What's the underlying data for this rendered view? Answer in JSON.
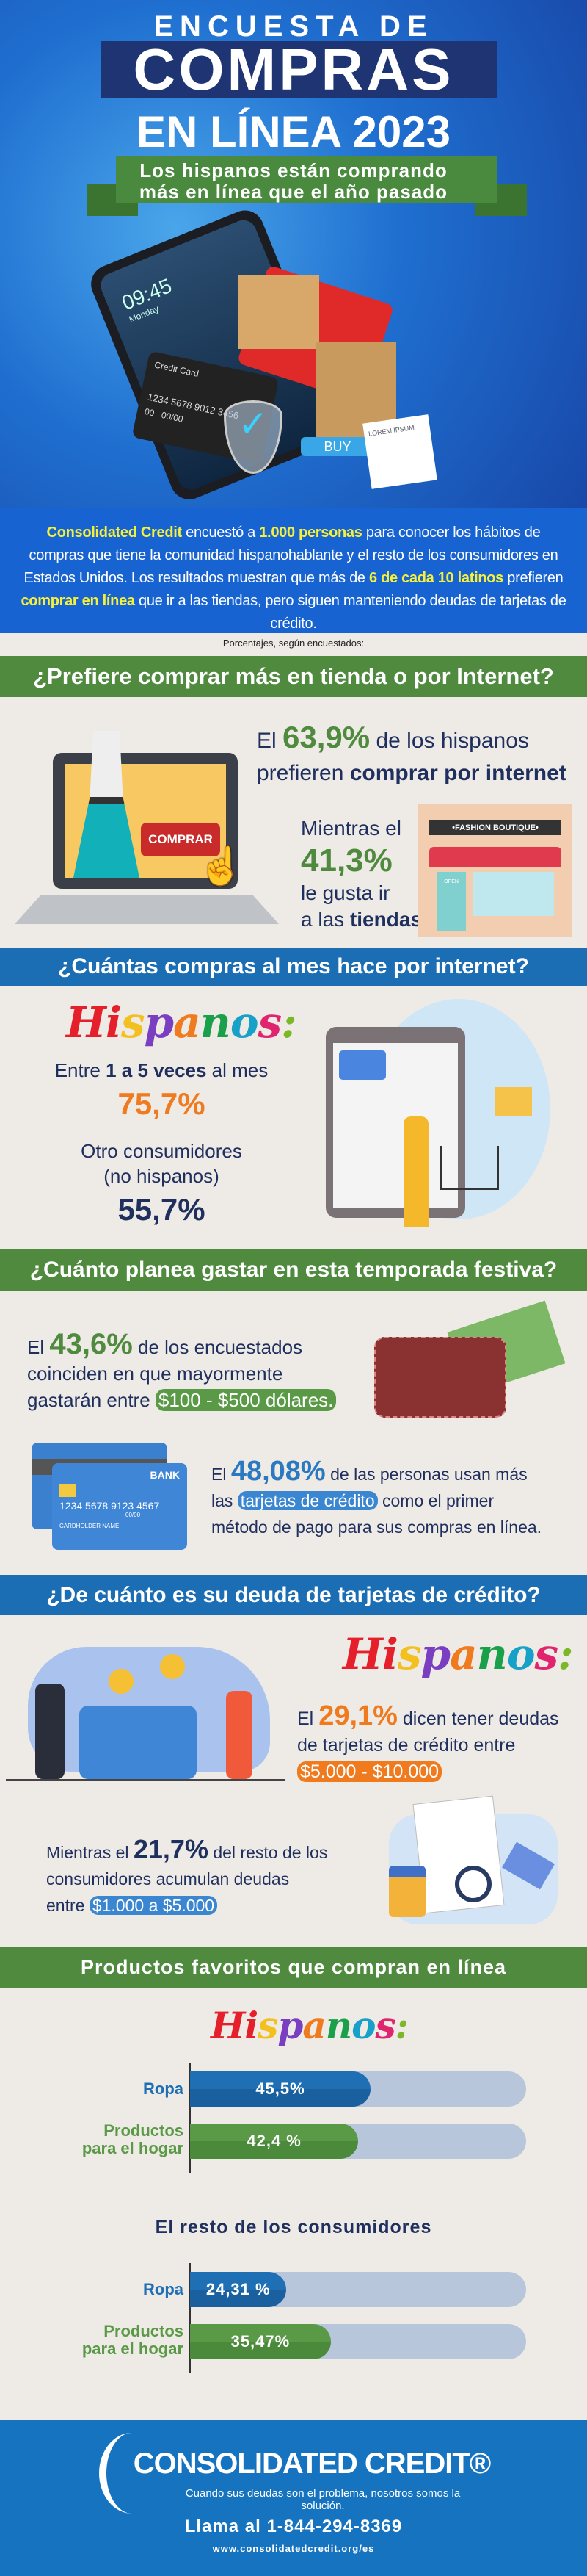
{
  "hero": {
    "line1": "ENCUESTA DE",
    "line2": "COMPRAS",
    "line3": "EN LÍNEA 2023",
    "ribbon1": "Los hispanos están comprando",
    "ribbon2": "más en línea que el año pasado",
    "illustration": {
      "phone_time": "09:45",
      "phone_day": "Monday",
      "card_label": "Credit Card",
      "card_number": "1234 5678 9012 3456",
      "card_extra": "00",
      "card_exp": "00/00",
      "buy_button": "BUY",
      "receipt_title": "LOREM IPSUM"
    }
  },
  "intro": {
    "p1": "Consolidated Credit",
    "p2": " encuestó a ",
    "p3": "1.000 personas",
    "p4": " para conocer los hábitos de compras que tiene la comunidad hispanohablante y el resto de los consumidores en Estados Unidos. Los resultados muestran que más de ",
    "p5": "6 de cada 10 latinos",
    "p6": " prefieren ",
    "p7": "comprar en línea",
    "p8": " que ir a las tiendas, pero siguen manteniendo deudas de tarjetas de crédito."
  },
  "note": "Porcentajes, según encuestados:",
  "s1": {
    "title": "¿Prefiere comprar más en tienda o por Internet?",
    "a1": "El ",
    "pct1": "63,9%",
    "a2": " de los hispanos",
    "a3": "prefieren ",
    "a4": "comprar por internet",
    "b1": "Mientras el",
    "pct2": "41,3%",
    "b2": "le gusta ir",
    "b3": "a las ",
    "b4": "tiendas",
    "buy_button": "COMPRAR",
    "store_sign": "•FASHION BOUTIQUE•",
    "open_sign": "OPEN"
  },
  "s2": {
    "title": "¿Cuántas compras al mes hace por internet?",
    "hispanos": "Hispanos:",
    "l1a": "Entre ",
    "l1b": "1 a 5 veces",
    "l1c": " al mes",
    "pct1": "75,7%",
    "l2": "Otro consumidores",
    "l3": "(no hispanos)",
    "pct2": "55,7%"
  },
  "s3": {
    "title": "¿Cuánto planea gastar en esta temporada festiva?",
    "a1": "El ",
    "pct1": "43,6%",
    "a2": " de los encuestados",
    "a3": "coinciden en que mayormente",
    "a4": "gastarán entre ",
    "a5": "$100 - $500 dólares.",
    "b1": "El ",
    "pct2": "48,08%",
    "b2": " de las personas usan más",
    "b3": "las ",
    "b4": "tarjetas de crédito",
    "b5": " como el primer",
    "b6": "método de pago para sus compras en línea.",
    "card_bank": "BANK",
    "card_number": "1234  5678  9123  4567",
    "card_exp": "00/00",
    "card_name": "CARDHOLDER NAME"
  },
  "s4": {
    "title": "¿De cuánto es su deuda de tarjetas de crédito?",
    "hispanos": "Hispanos:",
    "a1": "El ",
    "pct1": "29,1%",
    "a2": " dicen tener deudas",
    "a3": "de tarjetas de crédito entre",
    "a4": "$5.000 - $10.000",
    "b1": "Mientras el ",
    "pct2": "21,7%",
    "b2": " del resto de los",
    "b3": "consumidores acumulan deudas",
    "b4": "entre ",
    "b5": "$1.000 a $5.000"
  },
  "chart_data": [
    {
      "type": "bar",
      "title": "Hispanos:",
      "categories": [
        "Ropa",
        "Productos para el hogar"
      ],
      "values": [
        45.5,
        42.4
      ],
      "labels": [
        "45,5%",
        "42,4 %"
      ],
      "colors": [
        "#1f6fb5",
        "#5a9a47"
      ]
    },
    {
      "type": "bar",
      "title": "El resto de los consumidores",
      "categories": [
        "Ropa",
        "Productos para el hogar"
      ],
      "values": [
        24.31,
        35.47
      ],
      "labels": [
        "24,31 %",
        "35,47%"
      ],
      "colors": [
        "#1f6fb5",
        "#5a9a47"
      ]
    }
  ],
  "s5": {
    "title": "Productos favoritos que compran en línea",
    "cat1a": "Ropa",
    "cat2a": "Productos",
    "cat2b": "para el hogar"
  },
  "footer": {
    "logo": "CONSOLIDATED CREDIT®",
    "tagline": "Cuando sus deudas son el problema, nosotros somos la solución.",
    "phone": "Llama al 1-844-294-8369",
    "url": "www.consolidatedcredit.org/es"
  },
  "colors": {
    "green": "#4f8a3f",
    "blue": "#1b6db4",
    "navy": "#1f2f5e",
    "orange": "#f07a1e",
    "yellow": "#f6f03a"
  }
}
